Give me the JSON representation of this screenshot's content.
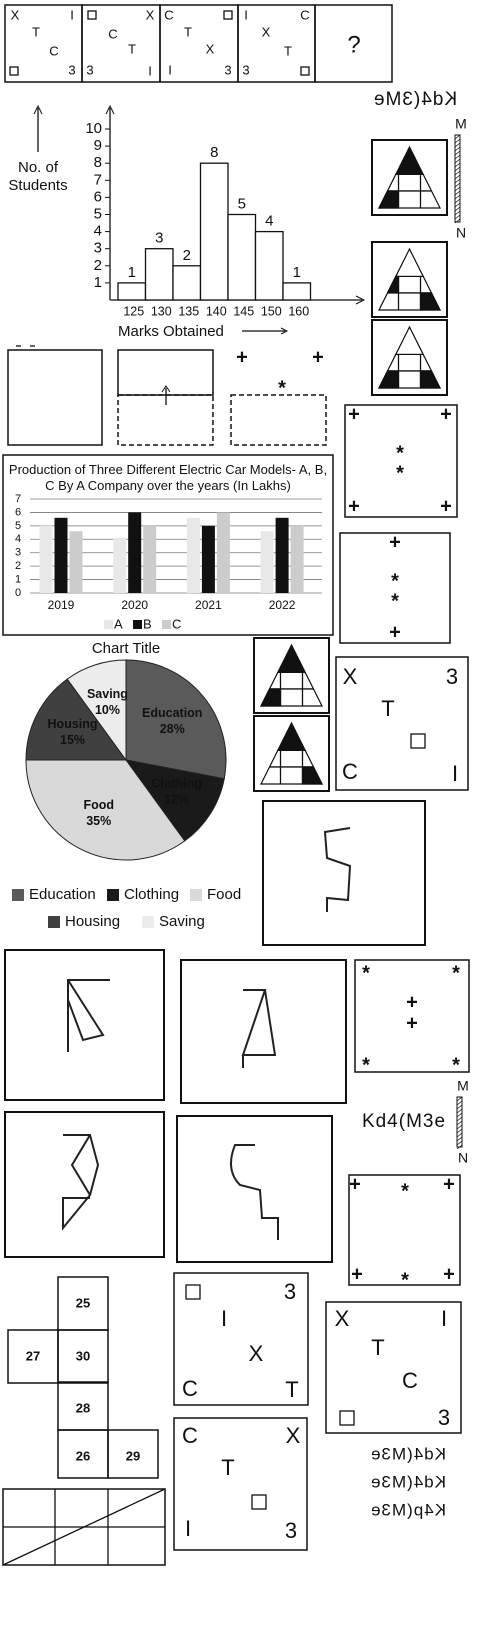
{
  "series_cells": [
    [
      "X",
      "I",
      "T",
      "C",
      "3"
    ],
    [
      "X",
      "C",
      "T",
      "3",
      "I"
    ],
    [
      "C",
      "T",
      "X",
      "I",
      "3"
    ],
    [
      "I",
      "C",
      "X",
      "T",
      "3"
    ],
    [
      "?"
    ]
  ],
  "mirror_text": {
    "top": "Kd4(3Me",
    "plain": "Kd4(M3e",
    "options": [
      "Kd4(M3e",
      "Kd4(M3e",
      "K4p(M3e"
    ]
  },
  "mirror_ends": [
    "M",
    "N"
  ],
  "chart_data": [
    {
      "type": "bar",
      "categories": [
        "125",
        "130",
        "135",
        "140",
        "145",
        "150",
        "160"
      ],
      "values": [
        1,
        3,
        2,
        8,
        5,
        4,
        1
      ],
      "ylim": [
        0,
        10
      ],
      "yticks": [
        1,
        2,
        3,
        4,
        5,
        6,
        7,
        8,
        9,
        10
      ],
      "y_label": "No. of Students",
      "x_label": "Marks Obtained",
      "color": "#ffffff"
    },
    {
      "type": "grouped_bar",
      "title": "Production of Three Different Electric Car Models- A, B, C By A Company over the years (In Lakhs)",
      "categories": [
        "2019",
        "2020",
        "2021",
        "2022"
      ],
      "series": [
        {
          "name": "A",
          "color": "#e8e8e8",
          "values": [
            5,
            4.1,
            5.6,
            4.6
          ]
        },
        {
          "name": "B",
          "color": "#111111",
          "values": [
            5.6,
            6,
            5,
            5.6
          ]
        },
        {
          "name": "C",
          "color": "#cccccc",
          "values": [
            4.6,
            5,
            6,
            5
          ]
        }
      ],
      "ylim": [
        0,
        7
      ],
      "yticks": [
        0,
        1,
        2,
        3,
        4,
        5,
        6,
        7
      ],
      "grid": true
    },
    {
      "type": "pie",
      "title": "Chart Title",
      "categories": [
        "Education",
        "Clothing",
        "Food",
        "Housing",
        "Saving"
      ],
      "values": [
        28,
        12,
        35,
        15,
        10
      ],
      "value_labels": [
        "28%",
        "12%",
        "35%",
        "15%",
        "10%"
      ],
      "colors": [
        "#5a5a5a",
        "#1a1a1a",
        "#d9d9d9",
        "#404040",
        "#ececec"
      ]
    }
  ],
  "figure_boxes": [
    [
      "+",
      "+",
      "*",
      "*",
      "+",
      "+"
    ],
    [
      "+",
      "*",
      "*",
      "+"
    ],
    [
      "+",
      "+",
      "*"
    ],
    [
      "X",
      "3",
      "T",
      "C",
      "I"
    ],
    [
      "*",
      "*",
      "+",
      "+",
      "*",
      "*"
    ],
    [
      "+",
      "*",
      "+",
      "+",
      "*",
      "+"
    ],
    [
      "3",
      "I",
      "X",
      "C",
      "T"
    ],
    [
      "X",
      "I",
      "T",
      "C",
      "3"
    ],
    [
      "C",
      "X",
      "T",
      "I",
      "3"
    ]
  ],
  "cube_net": [
    "25",
    "30",
    "27",
    "28",
    "26",
    "29"
  ]
}
